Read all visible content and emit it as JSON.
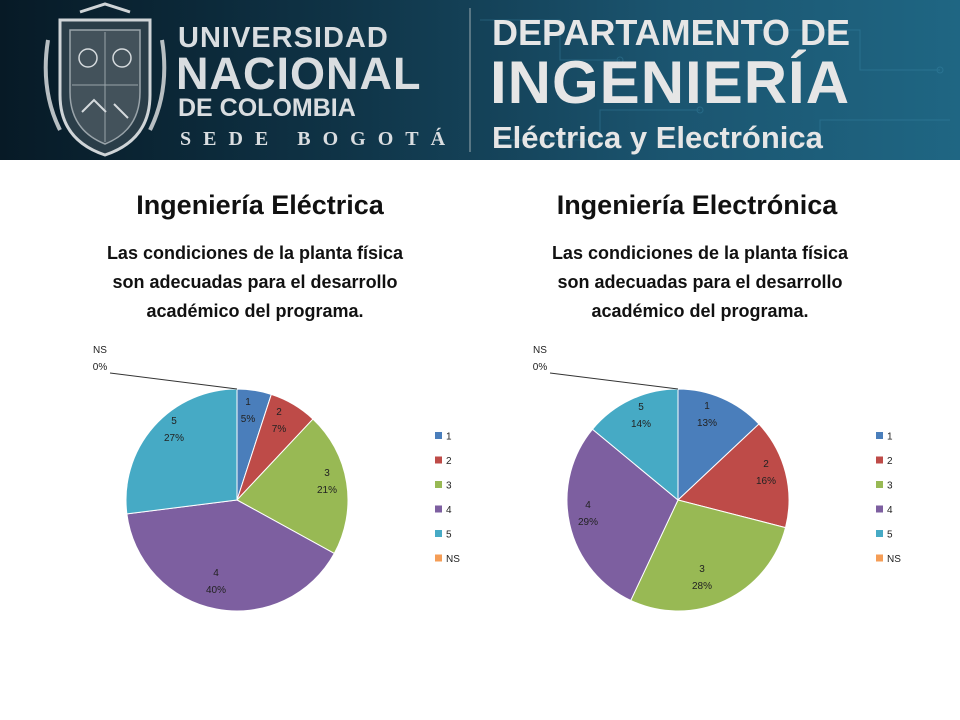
{
  "header": {
    "university_line1": "UNIVERSIDAD",
    "university_line2": "NACIONAL",
    "university_line3": "DE COLOMBIA",
    "campus": "SEDE BOGOTÁ",
    "dept_line1": "DEPARTAMENTO DE",
    "dept_line2": "INGENIERÍA",
    "dept_line3": "Eléctrica y Electrónica"
  },
  "colors": {
    "s1": "#4a7ebb",
    "s2": "#be4b48",
    "s3": "#98b954",
    "s4": "#7d5fa0",
    "s5": "#46aac5",
    "sNS": "#f59d56"
  },
  "panels": [
    {
      "title": "Ingeniería Eléctrica",
      "subtitle": "Las condiciones de la planta física son adecuadas para el desarrollo académico del programa."
    },
    {
      "title": "Ingeniería Electrónica",
      "subtitle": "Las condiciones de la planta física son adecuadas para el desarrollo académico del programa."
    }
  ],
  "chart_data": [
    {
      "type": "pie",
      "title": "Las condiciones de la planta física son adecuadas para el desarrollo académico del programa.",
      "legend_position": "right",
      "categories": [
        "1",
        "2",
        "3",
        "4",
        "5",
        "NS"
      ],
      "values": [
        5,
        7,
        21,
        40,
        27,
        0
      ],
      "labels": [
        "5%",
        "7%",
        "21%",
        "40%",
        "27%",
        "0%"
      ]
    },
    {
      "type": "pie",
      "title": "Las condiciones de la planta física son adecuadas para el desarrollo académico del programa.",
      "legend_position": "right",
      "categories": [
        "1",
        "2",
        "3",
        "4",
        "5",
        "NS"
      ],
      "values": [
        13,
        16,
        28,
        29,
        14,
        0
      ],
      "labels": [
        "13%",
        "16%",
        "28%",
        "29%",
        "14%",
        "0%"
      ]
    }
  ]
}
